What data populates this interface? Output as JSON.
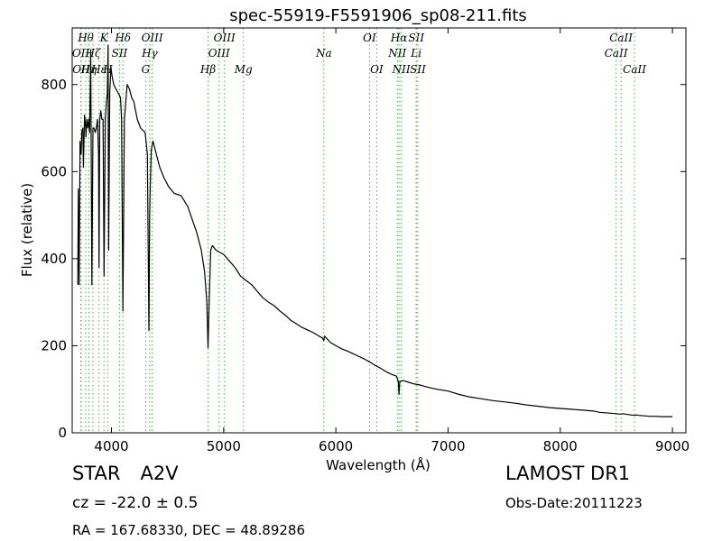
{
  "chart_data": {
    "type": "line",
    "title": "spec-55919-F5591906_sp08-211.fits",
    "xlabel": "Wavelength (Å)",
    "ylabel": "Flux (relative)",
    "xlim": [
      3650,
      9120
    ],
    "ylim": [
      0,
      930
    ],
    "xticks": [
      4000,
      5000,
      6000,
      7000,
      8000,
      9000
    ],
    "yticks": [
      0,
      200,
      400,
      600,
      800
    ],
    "grid": false,
    "line_color": "#000000",
    "marker_line_color": "#4caf50",
    "series": [
      {
        "x": [
          3700,
          3705,
          3712,
          3720,
          3726,
          3730,
          3735,
          3745,
          3750,
          3760,
          3770,
          3772,
          3780,
          3790,
          3797,
          3805,
          3815,
          3825,
          3835,
          3845,
          3855,
          3865,
          3875,
          3885,
          3889,
          3895,
          3905,
          3915,
          3925,
          3934,
          3945,
          3955,
          3963,
          3970,
          3975,
          3985,
          3995,
          4005,
          4020,
          4040,
          4060,
          4080,
          4090,
          4102,
          4115,
          4125,
          4140,
          4160,
          4180,
          4200,
          4230,
          4260,
          4300,
          4320,
          4334,
          4340,
          4345,
          4355,
          4370,
          4400,
          4430,
          4470,
          4510,
          4560,
          4620,
          4680,
          4720,
          4760,
          4800,
          4830,
          4850,
          4861,
          4872,
          4885,
          4900,
          4930,
          4960,
          5000,
          5050,
          5100,
          5150,
          5200,
          5250,
          5300,
          5350,
          5400,
          5450,
          5500,
          5550,
          5600,
          5650,
          5700,
          5750,
          5800,
          5850,
          5880,
          5893,
          5900,
          5950,
          6000,
          6050,
          6100,
          6150,
          6200,
          6250,
          6300,
          6350,
          6400,
          6450,
          6500,
          6540,
          6556,
          6563,
          6570,
          6600,
          6650,
          6700,
          6750,
          6800,
          6850,
          6900,
          6950,
          7000,
          7100,
          7200,
          7300,
          7400,
          7500,
          7600,
          7700,
          7800,
          7900,
          8000,
          8100,
          8200,
          8300,
          8350,
          8400,
          8450,
          8498,
          8520,
          8542,
          8560,
          8600,
          8662,
          8680,
          8700,
          8750,
          8800,
          8850,
          8900,
          8950,
          9000
        ],
        "values": [
          340,
          560,
          340,
          670,
          650,
          640,
          690,
          700,
          610,
          730,
          700,
          680,
          720,
          700,
          720,
          690,
          880,
          340,
          700,
          700,
          690,
          700,
          720,
          640,
          380,
          720,
          740,
          720,
          720,
          360,
          720,
          760,
          780,
          890,
          420,
          780,
          840,
          820,
          800,
          790,
          780,
          770,
          720,
          280,
          720,
          750,
          800,
          790,
          770,
          760,
          720,
          700,
          690,
          640,
          235,
          500,
          560,
          650,
          670,
          640,
          610,
          585,
          565,
          550,
          545,
          520,
          490,
          460,
          420,
          370,
          300,
          195,
          310,
          420,
          430,
          420,
          415,
          410,
          395,
          380,
          360,
          350,
          340,
          325,
          310,
          300,
          292,
          280,
          270,
          258,
          250,
          242,
          236,
          230,
          222,
          218,
          212,
          222,
          208,
          200,
          193,
          188,
          182,
          176,
          170,
          163,
          155,
          148,
          140,
          134,
          130,
          118,
          88,
          118,
          120,
          116,
          112,
          110,
          106,
          103,
          100,
          98,
          96,
          88,
          82,
          78,
          74,
          71,
          68,
          64,
          61,
          58,
          56,
          54,
          52,
          50,
          47,
          46,
          45,
          44,
          43,
          43,
          44,
          42,
          40,
          41,
          40,
          39,
          38,
          38,
          37,
          37,
          37
        ]
      }
    ],
    "lines": [
      {
        "wl": 3727,
        "label": "OII",
        "row": 2
      },
      {
        "wl": 3730,
        "label": "OII",
        "row": 3
      },
      {
        "wl": 3771,
        "label": "Hθ",
        "row": 1
      },
      {
        "wl": 3798,
        "label": "Hη",
        "row": 3
      },
      {
        "wl": 3835,
        "label": "Hζ",
        "row": 2
      },
      {
        "wl": 3889,
        "label": "Hε",
        "row": 3
      },
      {
        "wl": 3933,
        "label": "K",
        "row": 1
      },
      {
        "wl": 3968,
        "label": "H",
        "row": 3
      },
      {
        "wl": 4072,
        "label": "SII",
        "row": 2
      },
      {
        "wl": 4102,
        "label": "Hδ",
        "row": 1
      },
      {
        "wl": 4305,
        "label": "G",
        "row": 3
      },
      {
        "wl": 4341,
        "label": "Hγ",
        "row": 2
      },
      {
        "wl": 4363,
        "label": "OIII",
        "row": 1
      },
      {
        "wl": 4861,
        "label": "Hβ",
        "row": 3
      },
      {
        "wl": 4959,
        "label": "OIII",
        "row": 2
      },
      {
        "wl": 5007,
        "label": "OIII",
        "row": 1
      },
      {
        "wl": 5176,
        "label": "Mg",
        "row": 3
      },
      {
        "wl": 5893,
        "label": "Na",
        "row": 2
      },
      {
        "wl": 6300,
        "label": "OI",
        "row": 1
      },
      {
        "wl": 6364,
        "label": "OI",
        "row": 3
      },
      {
        "wl": 6548,
        "label": "NII",
        "row": 2
      },
      {
        "wl": 6563,
        "label": "Hα",
        "row": 1
      },
      {
        "wl": 6583,
        "label": "NII",
        "row": 3
      },
      {
        "wl": 6716,
        "label": "Li",
        "row": 2
      },
      {
        "wl": 6717,
        "label": "SII",
        "row": 1
      },
      {
        "wl": 6731,
        "label": "SII",
        "row": 3
      },
      {
        "wl": 8498,
        "label": "CaII",
        "row": 2
      },
      {
        "wl": 8542,
        "label": "CaII",
        "row": 1
      },
      {
        "wl": 8662,
        "label": "CaII",
        "row": 3
      }
    ]
  },
  "info": {
    "object_class": "STAR",
    "subclass": "A2V",
    "redshift": "cz = -22.0 ± 0.5",
    "coords": "RA = 167.68330, DEC = 48.89286",
    "survey": "LAMOST DR1",
    "obs_date": "Obs-Date:20111223"
  }
}
